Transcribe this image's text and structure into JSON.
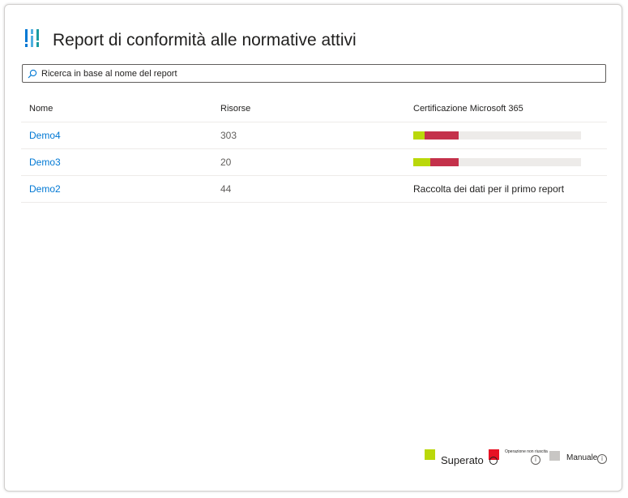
{
  "header": {
    "title": "Report di conformità alle normative attivi",
    "logo_icon": "compliance-bars-icon"
  },
  "search": {
    "placeholder": "Ricerca in base al nome del report",
    "value": ""
  },
  "table": {
    "columns": [
      "Nome",
      "Risorse",
      "Certificazione Microsoft 365"
    ],
    "rows": [
      {
        "name": "Demo4",
        "resources": "303",
        "certification": {
          "pass": 0.07,
          "fail": 0.2
        }
      },
      {
        "name": "Demo3",
        "resources": "20",
        "certification": {
          "pass": 0.1,
          "fail": 0.17
        }
      },
      {
        "name": "Demo2",
        "resources": "44",
        "certification_text": "Raccolta dei dati per il primo report"
      }
    ]
  },
  "legend": {
    "pass": "Superato",
    "fail": "Operazione non riuscita",
    "manual": "Manuale"
  },
  "colors": {
    "pass": "#bad80a",
    "fail": "#c4314b",
    "fail_legend": "#e81123",
    "manual": "#c8c6c4",
    "link": "#0078d4"
  }
}
